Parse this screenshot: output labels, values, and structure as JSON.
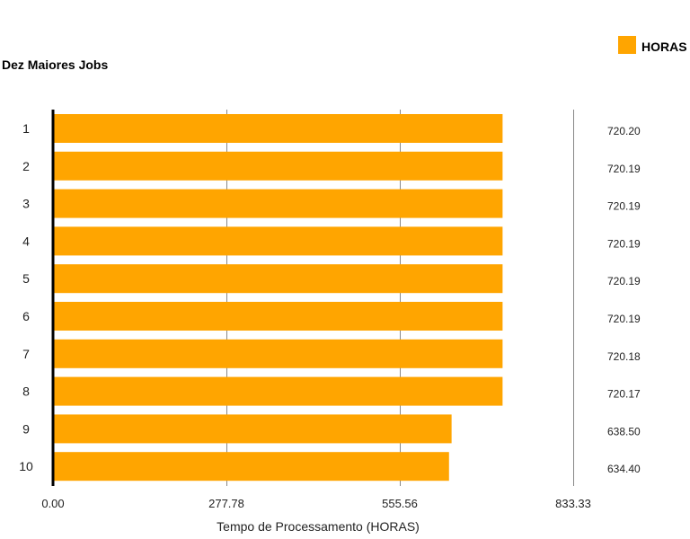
{
  "chart_data": {
    "type": "bar",
    "orientation": "horizontal",
    "title": "Dez Maiores Jobs",
    "xlabel": "Tempo de Processamento (HORAS)",
    "ylabel": "",
    "categories": [
      "1",
      "2",
      "3",
      "4",
      "5",
      "6",
      "7",
      "8",
      "9",
      "10"
    ],
    "series": [
      {
        "name": "HORAS",
        "color": "#ffa500",
        "values": [
          720.2,
          720.19,
          720.19,
          720.19,
          720.19,
          720.19,
          720.18,
          720.17,
          638.5,
          634.4
        ]
      }
    ],
    "value_labels": [
      "720.20",
      "720.19",
      "720.19",
      "720.19",
      "720.19",
      "720.19",
      "720.18",
      "720.17",
      "638.50",
      "634.40"
    ],
    "xlim": [
      0,
      833.33
    ],
    "xticks": [
      0,
      277.78,
      555.56,
      833.33
    ],
    "xtick_labels": [
      "0.00",
      "277.78",
      "555.56",
      "833.33"
    ],
    "grid": true,
    "legend": {
      "position": "top-right",
      "label": "HORAS"
    }
  }
}
